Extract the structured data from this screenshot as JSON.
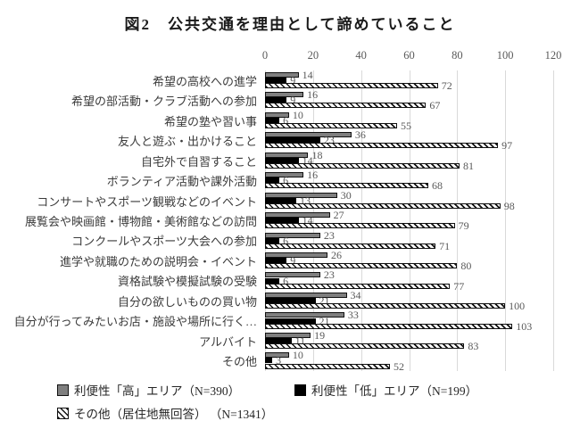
{
  "title": "図2　公共交通を理由として諦めていること",
  "chart_data": {
    "type": "bar",
    "orientation": "horizontal",
    "title": "図2　公共交通を理由として諦めていること",
    "categories": [
      "希望の高校への進学",
      "希望の部活動・クラブ活動への参加",
      "希望の塾や習い事",
      "友人と遊ぶ・出かけること",
      "自宅外で自習すること",
      "ボランティア活動や課外活動",
      "コンサートやスポーツ観戦などのイベント",
      "展覧会や映画館・博物館・美術館などの訪問",
      "コンクールやスポーツ大会への参加",
      "進学や就職のための説明会・イベント",
      "資格試験や模擬試験の受験",
      "自分の欲しいものの買い物",
      "自分が行ってみたいお店・施設や場所に行く…",
      "アルバイト",
      "その他"
    ],
    "series": [
      {
        "name": "利便性「高」エリア（N=390）",
        "pattern": "solid-gray",
        "color": "#7f7f7f",
        "values": [
          14,
          16,
          10,
          36,
          18,
          16,
          30,
          27,
          23,
          26,
          23,
          34,
          33,
          19,
          10
        ]
      },
      {
        "name": "利便性「低」エリア（N=199）",
        "pattern": "solid-black",
        "color": "#000000",
        "values": [
          9,
          9,
          6,
          23,
          14,
          6,
          13,
          14,
          6,
          9,
          6,
          21,
          21,
          11,
          3
        ]
      },
      {
        "name": "その他（居住地無回答） （N=1341）",
        "pattern": "diagonal-hatch",
        "color": "#ffffff",
        "values": [
          72,
          67,
          55,
          97,
          81,
          68,
          98,
          79,
          71,
          80,
          77,
          100,
          103,
          83,
          52
        ]
      }
    ],
    "xlim": [
      0,
      120
    ],
    "xticks": [
      0,
      20,
      40,
      60,
      80,
      100,
      120
    ],
    "grid": true,
    "axis_position": "top",
    "legend_position": "bottom",
    "value_labels": true,
    "label_color": "#595959",
    "gridline_color": "#d9d9d9"
  }
}
